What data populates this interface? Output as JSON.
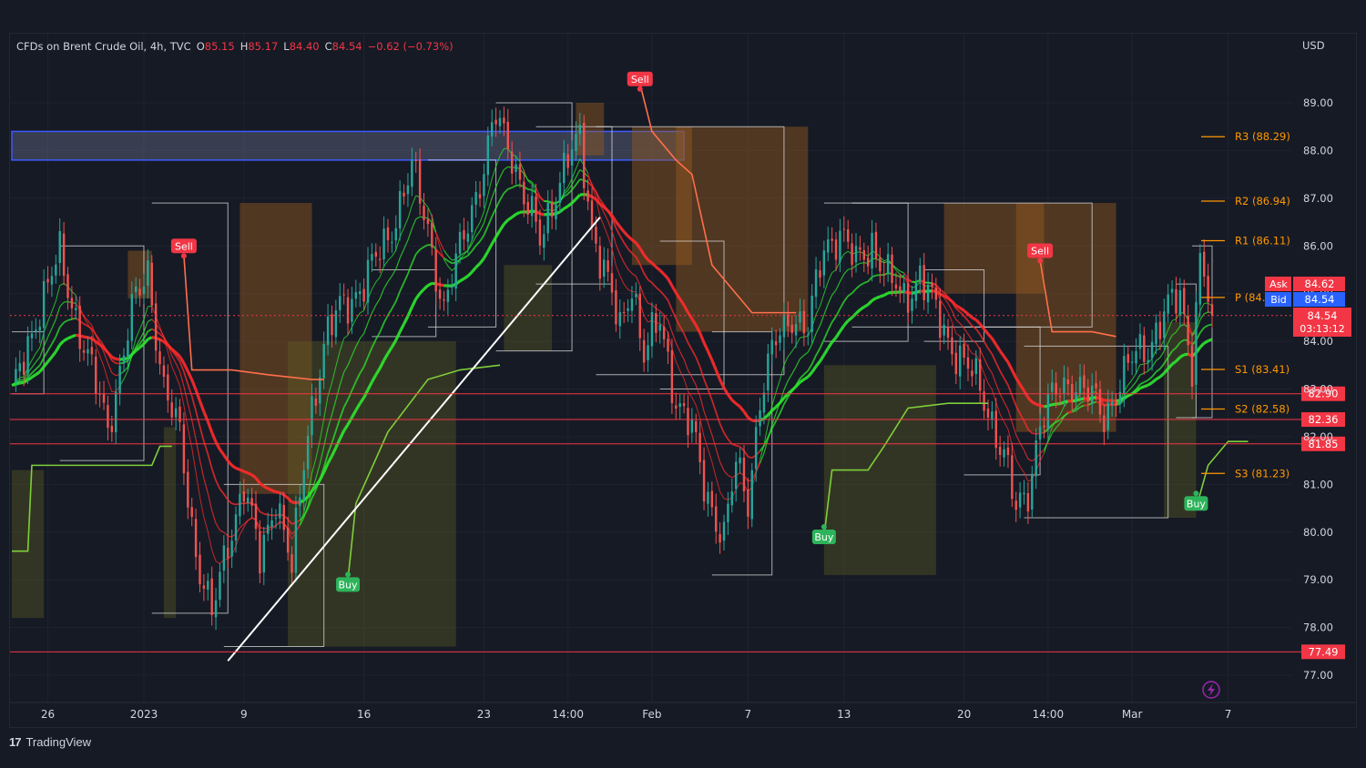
{
  "header": {
    "symbol": "CFDs on Brent Crude Oil, 4h, TVC",
    "open_label": "O",
    "open": "85.15",
    "high_label": "H",
    "high": "85.17",
    "low_label": "L",
    "low": "84.40",
    "close_label": "C",
    "close": "84.54",
    "change": "−0.62 (−0.73%)"
  },
  "currency": "USD",
  "footer": {
    "brand": "TradingView"
  },
  "colors": {
    "background": "#161a25",
    "up": "#26a69a",
    "down": "#ef5350",
    "bull_ma": "#2ee82e",
    "bear_ma": "#ff2b2b",
    "level": "#f23645",
    "pivot": "#ff9800",
    "buy": "#2db45a",
    "sell": "#f23645",
    "zone": "#3d5afe",
    "ask": "#f23645",
    "bid": "#2962ff"
  },
  "chart_data": {
    "type": "candlestick",
    "timeframe": "4h",
    "ylim": [
      76.5,
      90.5
    ],
    "y_ticks": [
      "89.00",
      "88.00",
      "87.00",
      "86.00",
      "85.00",
      "84.00",
      "83.00",
      "82.00",
      "81.00",
      "80.00",
      "79.00",
      "78.00",
      "77.00"
    ],
    "x_ticks": [
      {
        "label": "26",
        "i": 9
      },
      {
        "label": "2023",
        "i": 33
      },
      {
        "label": "9",
        "i": 58
      },
      {
        "label": "16",
        "i": 88
      },
      {
        "label": "23",
        "i": 118
      },
      {
        "label": "14:00",
        "i": 139
      },
      {
        "label": "Feb",
        "i": 160
      },
      {
        "label": "7",
        "i": 184
      },
      {
        "label": "13",
        "i": 208
      },
      {
        "label": "20",
        "i": 238
      },
      {
        "label": "14:00",
        "i": 259
      },
      {
        "label": "Mar",
        "i": 280
      },
      {
        "label": "7",
        "i": 304
      }
    ],
    "n_bars": 300,
    "close_path": [
      [
        0,
        82.8
      ],
      [
        6,
        84.5
      ],
      [
        12,
        85.8
      ],
      [
        18,
        83.9
      ],
      [
        24,
        82.2
      ],
      [
        30,
        84.6
      ],
      [
        34,
        85.5
      ],
      [
        38,
        83.0
      ],
      [
        42,
        82.0
      ],
      [
        46,
        79.6
      ],
      [
        50,
        78.2
      ],
      [
        54,
        79.8
      ],
      [
        58,
        81.0
      ],
      [
        62,
        79.4
      ],
      [
        66,
        80.8
      ],
      [
        70,
        79.2
      ],
      [
        74,
        82.2
      ],
      [
        78,
        83.9
      ],
      [
        82,
        84.7
      ],
      [
        88,
        85.2
      ],
      [
        94,
        86.2
      ],
      [
        100,
        87.6
      ],
      [
        104,
        86.4
      ],
      [
        108,
        84.6
      ],
      [
        114,
        86.6
      ],
      [
        118,
        87.6
      ],
      [
        121,
        88.7
      ],
      [
        125,
        88.0
      ],
      [
        128,
        87.0
      ],
      [
        132,
        86.1
      ],
      [
        136,
        87.2
      ],
      [
        139,
        87.8
      ],
      [
        142,
        88.2
      ],
      [
        145,
        86.4
      ],
      [
        149,
        85.2
      ],
      [
        152,
        84.2
      ],
      [
        155,
        85.3
      ],
      [
        158,
        83.7
      ],
      [
        162,
        84.4
      ],
      [
        166,
        82.8
      ],
      [
        170,
        82.1
      ],
      [
        173,
        81.0
      ],
      [
        176,
        80.3
      ],
      [
        178,
        79.9
      ],
      [
        181,
        81.4
      ],
      [
        184,
        80.7
      ],
      [
        187,
        82.8
      ],
      [
        191,
        84.0
      ],
      [
        195,
        84.6
      ],
      [
        199,
        84.2
      ],
      [
        203,
        86.0
      ],
      [
        207,
        86.3
      ],
      [
        211,
        85.6
      ],
      [
        215,
        86.1
      ],
      [
        219,
        85.3
      ],
      [
        223,
        84.9
      ],
      [
        227,
        85.4
      ],
      [
        230,
        84.8
      ],
      [
        233,
        84.2
      ],
      [
        236,
        83.8
      ],
      [
        240,
        83.3
      ],
      [
        244,
        82.6
      ],
      [
        248,
        81.6
      ],
      [
        251,
        80.4
      ],
      [
        254,
        80.9
      ],
      [
        257,
        82.3
      ],
      [
        261,
        82.9
      ],
      [
        265,
        83.2
      ],
      [
        269,
        82.9
      ],
      [
        273,
        82.4
      ],
      [
        276,
        83.0
      ],
      [
        280,
        83.6
      ],
      [
        284,
        83.9
      ],
      [
        288,
        84.6
      ],
      [
        292,
        84.9
      ],
      [
        295,
        83.6
      ],
      [
        297,
        85.8
      ],
      [
        300,
        84.54
      ]
    ],
    "moving_averages": {
      "bull_color": "#2ee82e",
      "bear_color": "#ff2b2b",
      "periods": [
        8,
        13,
        21,
        34
      ]
    },
    "horizontal_levels": [
      {
        "value": 82.9,
        "label": "82.90"
      },
      {
        "value": 82.36,
        "label": "82.36"
      },
      {
        "value": 81.85,
        "label": "81.85"
      },
      {
        "value": 77.49,
        "label": "77.49"
      }
    ],
    "pivots": [
      {
        "label": "R3 (88.29)",
        "value": 88.29
      },
      {
        "label": "R2 (86.94)",
        "value": 86.94
      },
      {
        "label": "R1 (86.11)",
        "value": 86.11
      },
      {
        "label": "P (84.9)",
        "value": 84.92
      },
      {
        "label": "S1 (83.41)",
        "value": 83.41
      },
      {
        "label": "S2 (82.58)",
        "value": 82.58
      },
      {
        "label": "S3 (81.23)",
        "value": 81.23
      }
    ],
    "resistance_zone": {
      "from": 87.8,
      "to": 88.4,
      "i_start": 0,
      "i_end": 168
    },
    "trendline": {
      "i1": 54,
      "y1": 77.3,
      "i2": 147,
      "y2": 86.6
    },
    "signals": [
      {
        "type": "Sell",
        "i": 43,
        "price": 86.0
      },
      {
        "type": "Buy",
        "i": 84,
        "price": 78.9
      },
      {
        "type": "Sell",
        "i": 157,
        "price": 89.5
      },
      {
        "type": "Buy",
        "i": 203,
        "price": 79.9
      },
      {
        "type": "Sell",
        "i": 257,
        "price": 85.9
      },
      {
        "type": "Buy",
        "i": 296,
        "price": 80.6
      }
    ],
    "shade_boxes": [
      {
        "i1": 0,
        "i2": 8,
        "top": 81.3,
        "bot": 78.2,
        "color": "olive"
      },
      {
        "i1": 29,
        "i2": 35,
        "top": 85.9,
        "bot": 84.9,
        "color": "orange"
      },
      {
        "i1": 38,
        "i2": 41,
        "top": 82.2,
        "bot": 78.2,
        "color": "olive"
      },
      {
        "i1": 57,
        "i2": 75,
        "top": 86.9,
        "bot": 80.8,
        "color": "orange"
      },
      {
        "i1": 69,
        "i2": 111,
        "top": 84.0,
        "bot": 77.6,
        "color": "olive"
      },
      {
        "i1": 123,
        "i2": 135,
        "top": 85.6,
        "bot": 83.8,
        "color": "olive"
      },
      {
        "i1": 141,
        "i2": 148,
        "top": 89.0,
        "bot": 87.9,
        "color": "orange"
      },
      {
        "i1": 155,
        "i2": 170,
        "top": 88.5,
        "bot": 85.6,
        "color": "orange"
      },
      {
        "i1": 166,
        "i2": 199,
        "top": 88.5,
        "bot": 84.2,
        "color": "orange"
      },
      {
        "i1": 203,
        "i2": 231,
        "top": 83.5,
        "bot": 79.1,
        "color": "olive"
      },
      {
        "i1": 233,
        "i2": 258,
        "top": 86.9,
        "bot": 85.0,
        "color": "orange"
      },
      {
        "i1": 251,
        "i2": 276,
        "top": 86.9,
        "bot": 82.1,
        "color": "orange"
      },
      {
        "i1": 288,
        "i2": 296,
        "top": 84.4,
        "bot": 80.3,
        "color": "olive"
      }
    ],
    "range_boxes": [
      {
        "i1": 0,
        "i2": 8,
        "top": 84.2,
        "bot": 82.9
      },
      {
        "i1": 12,
        "i2": 33,
        "top": 86.0,
        "bot": 81.5
      },
      {
        "i1": 35,
        "i2": 54,
        "top": 86.9,
        "bot": 78.3
      },
      {
        "i1": 53,
        "i2": 78,
        "top": 81.0,
        "bot": 77.6
      },
      {
        "i1": 90,
        "i2": 106,
        "top": 85.5,
        "bot": 84.1
      },
      {
        "i1": 104,
        "i2": 121,
        "top": 87.8,
        "bot": 84.3
      },
      {
        "i1": 121,
        "i2": 140,
        "top": 89.0,
        "bot": 83.8
      },
      {
        "i1": 131,
        "i2": 150,
        "top": 88.5,
        "bot": 85.2
      },
      {
        "i1": 146,
        "i2": 193,
        "top": 88.5,
        "bot": 83.3
      },
      {
        "i1": 162,
        "i2": 178,
        "top": 86.1,
        "bot": 83.0
      },
      {
        "i1": 175,
        "i2": 190,
        "top": 84.2,
        "bot": 79.1
      },
      {
        "i1": 203,
        "i2": 224,
        "top": 86.9,
        "bot": 84.0
      },
      {
        "i1": 210,
        "i2": 270,
        "top": 86.9,
        "bot": 84.3
      },
      {
        "i1": 228,
        "i2": 243,
        "top": 85.5,
        "bot": 84.0
      },
      {
        "i1": 238,
        "i2": 257,
        "top": 84.3,
        "bot": 81.2
      },
      {
        "i1": 253,
        "i2": 289,
        "top": 83.9,
        "bot": 80.3
      },
      {
        "i1": 291,
        "i2": 296,
        "top": 85.2,
        "bot": 82.4
      },
      {
        "i1": 295,
        "i2": 300,
        "top": 86.0,
        "bot": 82.4
      }
    ],
    "stop_lines": [
      {
        "color": "#ff6f4a",
        "pts": [
          [
            43,
            85.8
          ],
          [
            45,
            83.4
          ],
          [
            55,
            83.4
          ],
          [
            64,
            83.3
          ],
          [
            75,
            83.2
          ],
          [
            78,
            83.2
          ]
        ]
      },
      {
        "color": "#ff6f4a",
        "pts": [
          [
            157,
            89.4
          ],
          [
            160,
            88.4
          ],
          [
            166,
            87.8
          ],
          [
            170,
            87.5
          ],
          [
            175,
            85.6
          ],
          [
            185,
            84.6
          ],
          [
            196,
            84.6
          ]
        ]
      },
      {
        "color": "#ff6f4a",
        "pts": [
          [
            257,
            85.7
          ],
          [
            260,
            84.2
          ],
          [
            270,
            84.2
          ],
          [
            276,
            84.1
          ]
        ]
      },
      {
        "color": "#7ecf3a",
        "pts": [
          [
            0,
            79.6
          ],
          [
            4,
            79.6
          ],
          [
            5,
            81.4
          ],
          [
            35,
            81.4
          ],
          [
            37,
            81.8
          ],
          [
            40,
            81.8
          ]
        ]
      },
      {
        "color": "#7ecf3a",
        "pts": [
          [
            84,
            79.0
          ],
          [
            86,
            80.6
          ],
          [
            94,
            82.1
          ],
          [
            104,
            83.2
          ],
          [
            112,
            83.4
          ],
          [
            122,
            83.5
          ]
        ]
      },
      {
        "color": "#7ecf3a",
        "pts": [
          [
            203,
            79.9
          ],
          [
            205,
            81.3
          ],
          [
            214,
            81.3
          ],
          [
            218,
            81.8
          ],
          [
            224,
            82.6
          ],
          [
            234,
            82.7
          ],
          [
            244,
            82.7
          ]
        ]
      },
      {
        "color": "#7ecf3a",
        "pts": [
          [
            296,
            80.5
          ],
          [
            299,
            81.4
          ],
          [
            304,
            81.9
          ],
          [
            309,
            81.9
          ]
        ]
      }
    ],
    "price_labels": {
      "ask_label": "Ask",
      "ask": "84.62",
      "bid_label": "Bid",
      "bid": "84.54",
      "last": "84.54",
      "countdown": "03:13:12"
    }
  }
}
